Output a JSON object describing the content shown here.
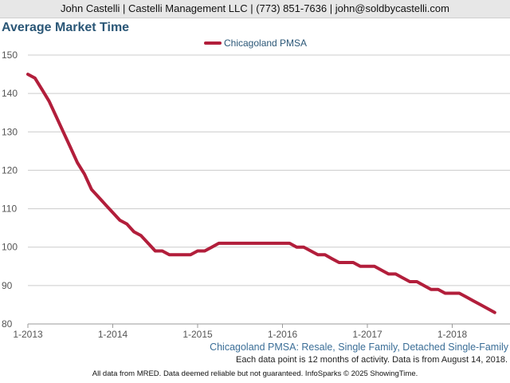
{
  "header": {
    "contact": "John Castelli | Castelli Management LLC | (773) 851-7636 | john@soldbycastelli.com"
  },
  "chart_title": "Average Market Time",
  "chart_data": {
    "type": "line",
    "title": "Average Market Time",
    "xlabel": "",
    "ylabel": "",
    "ylim": [
      80,
      150
    ],
    "yticks": [
      80,
      90,
      100,
      110,
      120,
      130,
      140,
      150
    ],
    "x_tick_labels": [
      "1-2013",
      "1-2014",
      "1-2015",
      "1-2016",
      "1-2017",
      "1-2018"
    ],
    "legend_position": "top-center",
    "grid": true,
    "series": [
      {
        "name": "Chicagoland PMSA",
        "color": "#b21e3b",
        "x_start": "2013-01",
        "x_step": "1 month",
        "values": [
          145,
          144,
          141,
          138,
          134,
          130,
          126,
          122,
          119,
          115,
          113,
          111,
          109,
          107,
          106,
          104,
          103,
          101,
          99,
          99,
          98,
          98,
          98,
          98,
          99,
          99,
          100,
          101,
          101,
          101,
          101,
          101,
          101,
          101,
          101,
          101,
          101,
          101,
          100,
          100,
          99,
          98,
          98,
          97,
          96,
          96,
          96,
          95,
          95,
          95,
          94,
          93,
          93,
          92,
          91,
          91,
          90,
          89,
          89,
          88,
          88,
          88,
          87,
          86,
          85,
          84,
          83
        ]
      }
    ]
  },
  "subtitle": "Chicagoland PMSA: Resale, Single Family, Detached Single-Family",
  "note": "Each data point is 12 months of activity. Data is from August 14, 2018.",
  "footer": "All data from MRED. Data deemed reliable but not guaranteed. InfoSparks © 2025 ShowingTime."
}
